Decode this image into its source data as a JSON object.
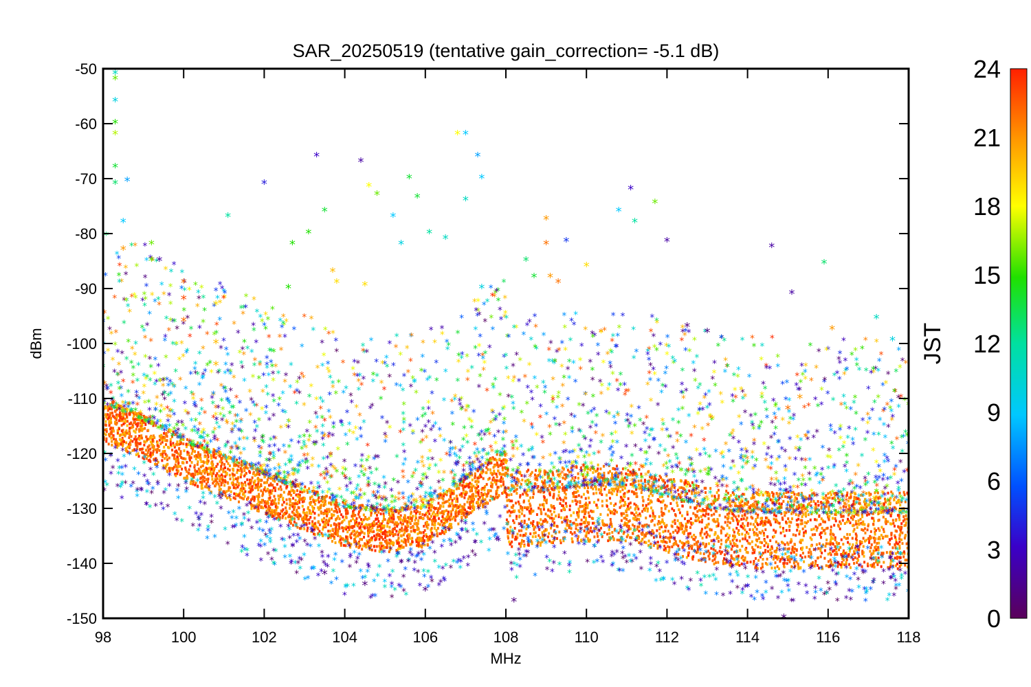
{
  "chart_data": {
    "type": "scatter",
    "title": "SAR_20250519 (tentative gain_correction= -5.1 dB)",
    "xlabel": "MHz",
    "ylabel": "dBm",
    "xlim": [
      98,
      118
    ],
    "ylim": [
      -150,
      -50
    ],
    "x_ticks": [
      "98",
      "100",
      "102",
      "104",
      "106",
      "108",
      "110",
      "112",
      "114",
      "116",
      "118"
    ],
    "y_ticks": [
      "-50",
      "-60",
      "-70",
      "-80",
      "-90",
      "-100",
      "-110",
      "-120",
      "-130",
      "-140",
      "-150"
    ],
    "grid": false,
    "colorbar": {
      "label": "JST",
      "range": [
        0,
        24
      ],
      "ticks": [
        "0",
        "3",
        "6",
        "9",
        "12",
        "15",
        "18",
        "21",
        "24"
      ],
      "colormap": "rainbow (purple-blue-cyan-green-yellow-orange-red)"
    },
    "series": [
      {
        "note_color_by": "JST",
        "noise_floor_dBm_by_MHz": {
          "x": [
            98,
            99,
            100,
            101,
            102,
            103,
            104,
            105,
            106,
            107,
            108,
            108.05,
            109,
            110,
            111,
            112,
            113,
            114,
            115,
            116,
            117,
            118
          ],
          "y": [
            -114,
            -117,
            -121,
            -124,
            -127,
            -130,
            -133,
            -134,
            -133,
            -128,
            -123,
            -130,
            -130,
            -129,
            -129,
            -131,
            -133,
            -134,
            -134,
            -134,
            -134,
            -134
          ]
        },
        "points": [
          {
            "x": 98.3,
            "y": -51,
            "jst": 11
          },
          {
            "x": 98.3,
            "y": -52,
            "jst": 16
          },
          {
            "x": 98.3,
            "y": -56,
            "jst": 10
          },
          {
            "x": 98.3,
            "y": -60,
            "jst": 15
          },
          {
            "x": 98.3,
            "y": -62,
            "jst": 17
          },
          {
            "x": 98.3,
            "y": -68,
            "jst": 14
          },
          {
            "x": 98.3,
            "y": -71,
            "jst": 13
          },
          {
            "x": 98.6,
            "y": -70.5,
            "jst": 8
          },
          {
            "x": 98.5,
            "y": -78,
            "jst": 9
          },
          {
            "x": 98.5,
            "y": -83,
            "jst": 21
          },
          {
            "x": 99.2,
            "y": -82,
            "jst": 16
          },
          {
            "x": 99.2,
            "y": -85,
            "jst": 16
          },
          {
            "x": 99.4,
            "y": -85,
            "jst": 2
          },
          {
            "x": 100.0,
            "y": -89,
            "jst": 22
          },
          {
            "x": 100.0,
            "y": -92,
            "jst": 23
          },
          {
            "x": 100.0,
            "y": -96,
            "jst": 22
          },
          {
            "x": 100.8,
            "y": -93,
            "jst": 19
          },
          {
            "x": 100.8,
            "y": -100,
            "jst": 20
          },
          {
            "x": 100.8,
            "y": -104,
            "jst": 20
          },
          {
            "x": 101.1,
            "y": -77,
            "jst": 12
          },
          {
            "x": 102.0,
            "y": -71,
            "jst": 4
          },
          {
            "x": 102.7,
            "y": -82,
            "jst": 15
          },
          {
            "x": 102.6,
            "y": -90,
            "jst": 15
          },
          {
            "x": 103.1,
            "y": -80,
            "jst": 15
          },
          {
            "x": 103.3,
            "y": -66,
            "jst": 3
          },
          {
            "x": 103.5,
            "y": -76,
            "jst": 14
          },
          {
            "x": 103.8,
            "y": -89,
            "jst": 19
          },
          {
            "x": 103.7,
            "y": -87,
            "jst": 20
          },
          {
            "x": 104.4,
            "y": -67,
            "jst": 2
          },
          {
            "x": 104.6,
            "y": -71.5,
            "jst": 18
          },
          {
            "x": 104.8,
            "y": -73,
            "jst": 16
          },
          {
            "x": 104.5,
            "y": -89.5,
            "jst": 19
          },
          {
            "x": 105.2,
            "y": -77,
            "jst": 9
          },
          {
            "x": 105.4,
            "y": -82,
            "jst": 10
          },
          {
            "x": 105.6,
            "y": -70,
            "jst": 14
          },
          {
            "x": 105.8,
            "y": -73.5,
            "jst": 14
          },
          {
            "x": 106.1,
            "y": -80,
            "jst": 12
          },
          {
            "x": 106.5,
            "y": -81,
            "jst": 11
          },
          {
            "x": 106.8,
            "y": -62,
            "jst": 18
          },
          {
            "x": 107.0,
            "y": -62,
            "jst": 9
          },
          {
            "x": 107.0,
            "y": -74,
            "jst": 11
          },
          {
            "x": 107.3,
            "y": -66,
            "jst": 8
          },
          {
            "x": 107.4,
            "y": -70,
            "jst": 9
          },
          {
            "x": 107.4,
            "y": -90,
            "jst": 10
          },
          {
            "x": 109.0,
            "y": -77.5,
            "jst": 21
          },
          {
            "x": 109.0,
            "y": -82,
            "jst": 22
          },
          {
            "x": 108.5,
            "y": -85,
            "jst": 13
          },
          {
            "x": 108.7,
            "y": -88,
            "jst": 14
          },
          {
            "x": 109.1,
            "y": -88,
            "jst": 21
          },
          {
            "x": 109.3,
            "y": -89,
            "jst": 22
          },
          {
            "x": 109.5,
            "y": -81.5,
            "jst": 5
          },
          {
            "x": 110.0,
            "y": -86,
            "jst": 19
          },
          {
            "x": 110.8,
            "y": -76,
            "jst": 9
          },
          {
            "x": 111.1,
            "y": -72,
            "jst": 3
          },
          {
            "x": 111.2,
            "y": -78,
            "jst": 12
          },
          {
            "x": 111.7,
            "y": -74.5,
            "jst": 16
          },
          {
            "x": 112.0,
            "y": -81.5,
            "jst": 2
          },
          {
            "x": 112.5,
            "y": -97,
            "jst": 1
          },
          {
            "x": 113.0,
            "y": -98,
            "jst": 1
          },
          {
            "x": 114.6,
            "y": -82.5,
            "jst": 2
          },
          {
            "x": 115.1,
            "y": -91,
            "jst": 2
          },
          {
            "x": 115.9,
            "y": -85.5,
            "jst": 13
          },
          {
            "x": 116.1,
            "y": -97.5,
            "jst": 21
          },
          {
            "x": 117.2,
            "y": -95.5,
            "jst": 11
          },
          {
            "x": 117.6,
            "y": -99.5,
            "jst": 10
          },
          {
            "x": 115.0,
            "y": -112,
            "jst": 22
          },
          {
            "x": 115.3,
            "y": -110,
            "jst": 21
          },
          {
            "x": 103.5,
            "y": -142,
            "jst": 1
          },
          {
            "x": 104.5,
            "y": -144,
            "jst": 1
          },
          {
            "x": 106.0,
            "y": -145,
            "jst": 1
          },
          {
            "x": 108.2,
            "y": -147,
            "jst": 1
          },
          {
            "x": 114.9,
            "y": -150,
            "jst": 1
          }
        ]
      }
    ]
  }
}
